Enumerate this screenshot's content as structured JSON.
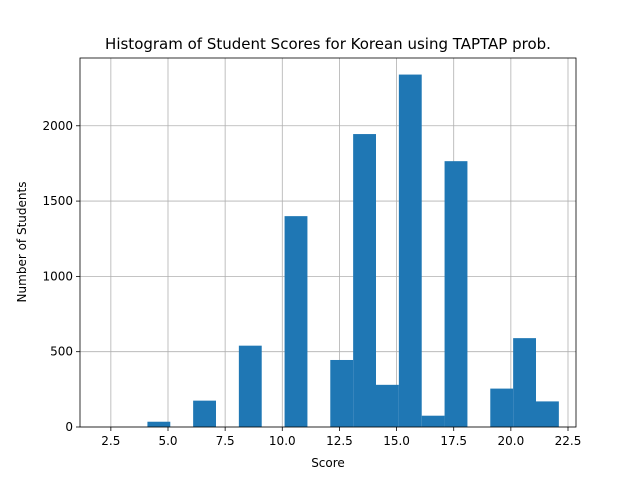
{
  "chart_data": {
    "type": "bar",
    "title": "Histogram of Student Scores for Korean using TAPTAP prob.",
    "xlabel": "Score",
    "ylabel": "Number of Students",
    "xlim": [
      1.15,
      22.85
    ],
    "ylim": [
      0,
      2450
    ],
    "xticks": [
      2.5,
      5.0,
      7.5,
      10.0,
      12.5,
      15.0,
      17.5,
      20.0,
      22.5
    ],
    "xtick_labels": [
      "2.5",
      "5.0",
      "7.5",
      "10.0",
      "12.5",
      "15.0",
      "17.5",
      "20.0",
      "22.5"
    ],
    "yticks": [
      0,
      500,
      1000,
      1500,
      2000
    ],
    "ytick_labels": [
      "0",
      "500",
      "1000",
      "1500",
      "2000"
    ],
    "grid": true,
    "bar_color": "#1f77b4",
    "bins": [
      {
        "x0": 4.1,
        "x1": 5.1,
        "value": 35
      },
      {
        "x0": 6.1,
        "x1": 7.1,
        "value": 175
      },
      {
        "x0": 8.1,
        "x1": 9.1,
        "value": 540
      },
      {
        "x0": 10.1,
        "x1": 11.1,
        "value": 1400
      },
      {
        "x0": 12.1,
        "x1": 13.1,
        "value": 445
      },
      {
        "x0": 13.1,
        "x1": 14.1,
        "value": 1945
      },
      {
        "x0": 14.1,
        "x1": 15.1,
        "value": 280
      },
      {
        "x0": 15.1,
        "x1": 16.1,
        "value": 2340
      },
      {
        "x0": 16.1,
        "x1": 17.1,
        "value": 75
      },
      {
        "x0": 17.1,
        "x1": 18.1,
        "value": 1765
      },
      {
        "x0": 19.1,
        "x1": 20.1,
        "value": 255
      },
      {
        "x0": 20.1,
        "x1": 21.1,
        "value": 590
      },
      {
        "x0": 21.1,
        "x1": 22.1,
        "value": 170
      }
    ]
  }
}
